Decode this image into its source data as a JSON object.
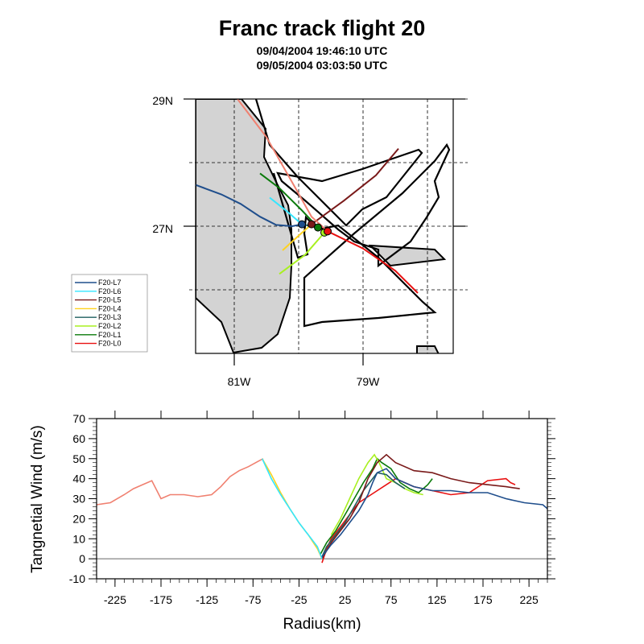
{
  "title": "Franc track flight 20",
  "subtitle_line1": "09/04/2004 19:46:10 UTC",
  "subtitle_line2": "09/05/2004 03:03:50 UTC",
  "chart_data": [
    {
      "type": "map",
      "lat_labels": [
        "29N",
        "27N"
      ],
      "lon_labels": [
        "81W",
        "79W"
      ],
      "lat_range": [
        25,
        29
      ],
      "lon_range": [
        -81.6,
        -77.6
      ],
      "grid": true,
      "legend_position": "bottom-left",
      "legend": [
        {
          "name": "F20-L7",
          "color": "#1f4e8c"
        },
        {
          "name": "F20-L6",
          "color": "#33e6ff"
        },
        {
          "name": "F20-L5",
          "color": "#7a1a1a"
        },
        {
          "name": "F20-L4",
          "color": "#ffd21f"
        },
        {
          "name": "F20-L3",
          "color": "#1f5f5f"
        },
        {
          "name": "F20-L2",
          "color": "#a8f020"
        },
        {
          "name": "F20-L1",
          "color": "#0a7a0a"
        },
        {
          "name": "F20-L0",
          "color": "#e81010"
        }
      ],
      "legs": [
        {
          "name": "F20-L7",
          "color": "#1f4e8c",
          "points": [
            [
              -81.6,
              27.65
            ],
            [
              -81.2,
              27.5
            ],
            [
              -80.9,
              27.35
            ],
            [
              -80.6,
              27.15
            ],
            [
              -80.35,
              27.02
            ],
            [
              -80.1,
              27.0
            ],
            [
              -79.95,
              27.03
            ]
          ]
        },
        {
          "name": "F20-L6",
          "color": "#33e6ff",
          "points": [
            [
              -80.45,
              27.45
            ],
            [
              -80.2,
              27.25
            ],
            [
              -79.95,
              27.03
            ]
          ]
        },
        {
          "name": "F20-L5",
          "color": "#7a1a1a",
          "points": [
            [
              -79.8,
              27.03
            ],
            [
              -79.3,
              27.4
            ],
            [
              -78.8,
              27.8
            ],
            [
              -78.45,
              28.22
            ]
          ]
        },
        {
          "name": "F20-L4",
          "color": "#ffd21f",
          "points": [
            [
              -80.25,
              26.62
            ],
            [
              -80.0,
              26.85
            ],
            [
              -79.8,
              27.03
            ]
          ]
        },
        {
          "name": "F20-L3",
          "color": "#1f5f5f",
          "points": [
            [
              -79.95,
              27.03
            ],
            [
              -79.7,
              26.98
            ]
          ]
        },
        {
          "name": "F20-L2",
          "color": "#a8f020",
          "points": [
            [
              -80.3,
              26.25
            ],
            [
              -79.9,
              26.55
            ],
            [
              -79.6,
              26.9
            ]
          ]
        },
        {
          "name": "F20-L1",
          "color": "#0a7a0a",
          "points": [
            [
              -80.6,
              27.83
            ],
            [
              -80.3,
              27.6
            ],
            [
              -79.95,
              27.25
            ],
            [
              -79.7,
              26.98
            ]
          ]
        },
        {
          "name": "F20-L0",
          "color": "#e81010",
          "points": [
            [
              -79.55,
              26.92
            ],
            [
              -79.0,
              26.65
            ],
            [
              -78.5,
              26.3
            ],
            [
              -78.15,
              25.95
            ]
          ]
        },
        {
          "name": "F20-L0",
          "color": "#f08070",
          "points": [
            [
              -80.95,
              29.0
            ],
            [
              -80.5,
              28.4
            ],
            [
              -80.05,
              27.6
            ],
            [
              -79.8,
              27.15
            ],
            [
              -79.55,
              26.92
            ]
          ]
        }
      ],
      "centers": [
        {
          "color": "#1f4e8c",
          "lon": -79.95,
          "lat": 27.03
        },
        {
          "color": "#7a1a1a",
          "lon": -79.8,
          "lat": 27.03
        },
        {
          "color": "#0a7a0a",
          "lon": -79.7,
          "lat": 26.98
        },
        {
          "color": "#a8f020",
          "lon": -79.6,
          "lat": 26.9
        },
        {
          "color": "#e81010",
          "lon": -79.55,
          "lat": 26.92
        }
      ]
    },
    {
      "type": "line",
      "xlabel": "Radius(km)",
      "ylabel": "Tangnetial Wind (m/s)",
      "xlim": [
        -245,
        245
      ],
      "ylim": [
        -10,
        70
      ],
      "xticks": [
        -225,
        -175,
        -125,
        -75,
        -25,
        25,
        75,
        125,
        175,
        225
      ],
      "yticks": [
        -10,
        0,
        10,
        20,
        30,
        40,
        50,
        60,
        70
      ],
      "zero_line": true,
      "series": [
        {
          "name": "F20-L0",
          "color": "#f08070",
          "x": [
            -245,
            -230,
            -215,
            -205,
            -195,
            -185,
            -175,
            -165,
            -150,
            -135,
            -120,
            -110,
            -100,
            -90,
            -80,
            -72,
            -68,
            -64
          ],
          "y": [
            27,
            28,
            32,
            35,
            37,
            39,
            30,
            32,
            32,
            31,
            32,
            36,
            41,
            44,
            46,
            48,
            49,
            50
          ]
        },
        {
          "name": "F20-L0",
          "color": "#e81010",
          "x": [
            0,
            5,
            10,
            20,
            30,
            40,
            50,
            60,
            70,
            80,
            100,
            120,
            140,
            160,
            180,
            200,
            205,
            210
          ],
          "y": [
            -2,
            5,
            10,
            16,
            22,
            28,
            31,
            34,
            37,
            40,
            36,
            34,
            32,
            33,
            39,
            40,
            38,
            37
          ]
        },
        {
          "name": "F20-L1",
          "color": "#0a7a0a",
          "x": [
            -2,
            5,
            15,
            25,
            35,
            45,
            55,
            60,
            65,
            75,
            85,
            95,
            105,
            115,
            120
          ],
          "y": [
            2,
            8,
            14,
            22,
            30,
            38,
            45,
            50,
            48,
            45,
            38,
            35,
            33,
            37,
            40
          ]
        },
        {
          "name": "F20-L2",
          "color": "#a8f020",
          "x": [
            10,
            20,
            30,
            40,
            50,
            57,
            62,
            70,
            80,
            90,
            100,
            110
          ],
          "y": [
            12,
            20,
            30,
            40,
            48,
            52,
            48,
            40,
            38,
            35,
            33,
            32
          ]
        },
        {
          "name": "F20-L3",
          "color": "#1f5f5f",
          "x": [
            0,
            5,
            15,
            25,
            35,
            45,
            55,
            60,
            70,
            80,
            90
          ],
          "y": [
            1,
            6,
            12,
            18,
            26,
            34,
            40,
            43,
            42,
            38,
            35
          ]
        },
        {
          "name": "F20-L4",
          "color": "#ffd21f",
          "x": [
            -65,
            -55,
            -45,
            -35,
            -25,
            -15,
            -5,
            0
          ],
          "y": [
            50,
            42,
            33,
            25,
            18,
            12,
            5,
            0
          ]
        },
        {
          "name": "F20-L5",
          "color": "#7a1a1a",
          "x": [
            0,
            10,
            20,
            30,
            40,
            50,
            60,
            70,
            80,
            100,
            120,
            140,
            160,
            180,
            200,
            215
          ],
          "y": [
            0,
            8,
            14,
            20,
            28,
            40,
            48,
            52,
            48,
            44,
            43,
            40,
            38,
            37,
            36,
            35
          ]
        },
        {
          "name": "F20-L6",
          "color": "#33e6ff",
          "x": [
            -65,
            -55,
            -45,
            -35,
            -25,
            -15,
            -5,
            0
          ],
          "y": [
            50,
            40,
            32,
            25,
            18,
            12,
            6,
            0
          ]
        },
        {
          "name": "F20-L7",
          "color": "#1f4e8c",
          "x": [
            0,
            10,
            20,
            30,
            40,
            50,
            55,
            60,
            70,
            80,
            100,
            120,
            140,
            160,
            180,
            200,
            220,
            240,
            245
          ],
          "y": [
            1,
            7,
            12,
            18,
            24,
            32,
            38,
            43,
            45,
            40,
            36,
            34,
            34,
            33,
            33,
            30,
            28,
            27,
            25
          ]
        }
      ]
    }
  ]
}
